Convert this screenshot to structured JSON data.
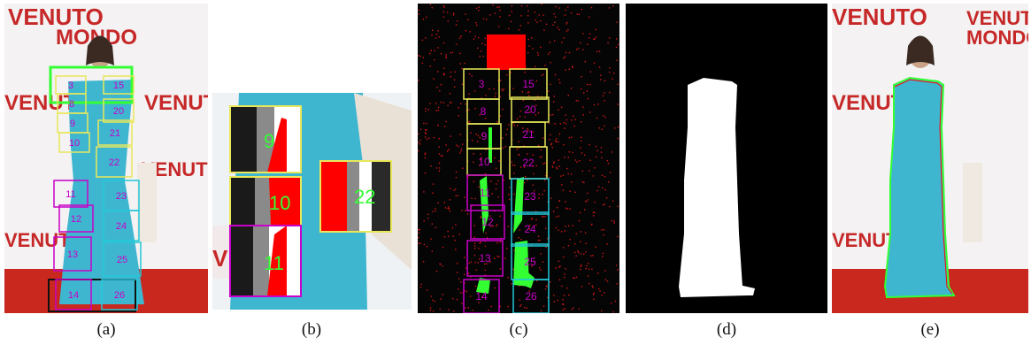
{
  "captions": {
    "a": "(a)",
    "b": "(b)",
    "c": "(c)",
    "d": "(d)",
    "e": "(e)"
  },
  "backdrop_logo": {
    "line1": "VENUTO",
    "line1_small": "al",
    "line2": "MONDO"
  },
  "panel_a": {
    "left_boxes": [
      "3",
      "8",
      "9",
      "10",
      "11",
      "12",
      "13",
      "14"
    ],
    "right_boxes": [
      "15",
      "20",
      "21",
      "22",
      "23",
      "24",
      "25",
      "26"
    ]
  },
  "panel_b": {
    "labels": [
      "9",
      "10",
      "11",
      "22"
    ]
  },
  "panel_c": {
    "left_boxes": [
      "3",
      "8",
      "9",
      "10",
      "11",
      "12",
      "13",
      "14"
    ],
    "right_boxes": [
      "15",
      "20",
      "21",
      "22",
      "23",
      "24",
      "25",
      "26"
    ]
  },
  "colors": {
    "yellow": "#e8e85a",
    "magenta": "#c800c8",
    "cyan": "#22c8d8",
    "green": "#33ff33",
    "red": "#ff0000",
    "dress": "#3fb6d0",
    "carpet": "#c8281e"
  }
}
